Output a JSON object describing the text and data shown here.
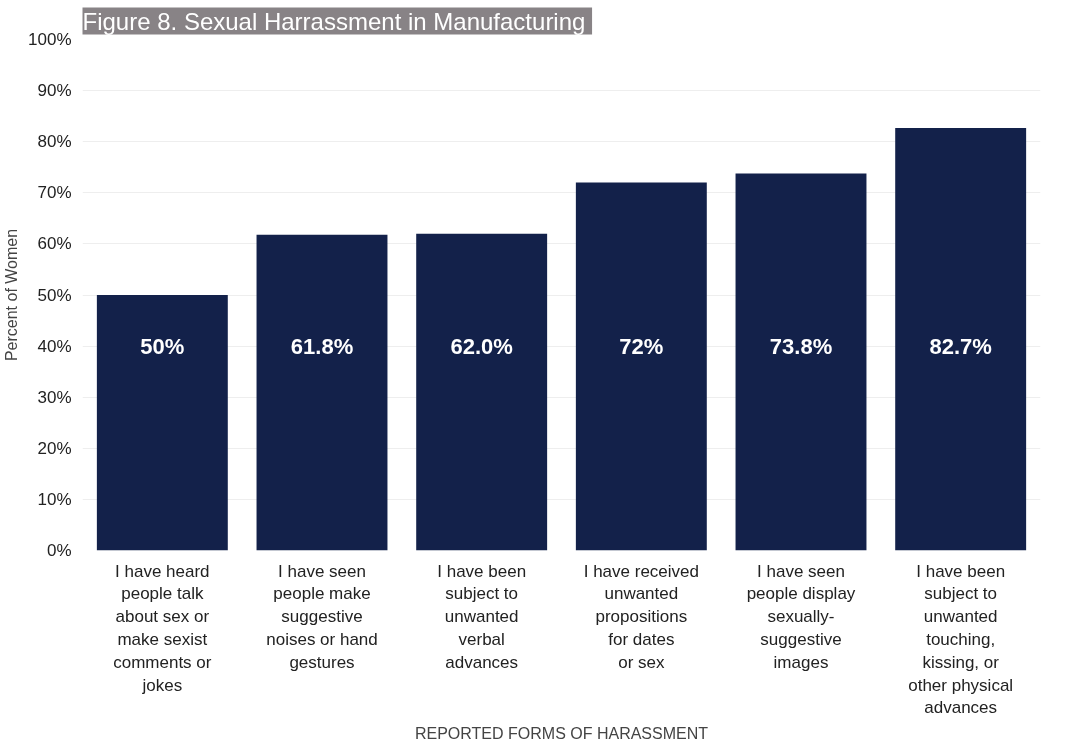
{
  "chart_data": {
    "type": "bar",
    "title": "Figure 8.  Sexual Harrassment in Manufacturing",
    "categories": [
      "I have heard\npeople talk\nabout sex or\nmake sexist\ncomments or\njokes",
      "I have seen\npeople make\nsuggestive\nnoises or hand\ngestures",
      "I have been\nsubject to\nunwanted\nverbal\nadvances",
      "I have received\nunwanted\npropositions\nfor dates\nor sex",
      "I have seen\npeople display\nsexually-\nsuggestive\nimages",
      "I have been\nsubject to\nunwanted\ntouching,\nkissing, or\nother physical\nadvances"
    ],
    "values": [
      50,
      61.8,
      62.0,
      72,
      73.8,
      82.7
    ],
    "value_labels": [
      "50%",
      "61.8%",
      "62.0%",
      "72%",
      "73.8%",
      "82.7%"
    ],
    "color": "#13214a",
    "ylabel": "Percent of Women",
    "xlabel": "REPORTED FORMS OF HARASSMENT",
    "ylim": [
      0,
      100
    ],
    "yticks": [
      {
        "value": 0,
        "label": "0%"
      },
      {
        "value": 10,
        "label": "10%"
      },
      {
        "value": 20,
        "label": "20%"
      },
      {
        "value": 30,
        "label": "30%"
      },
      {
        "value": 40,
        "label": "40%"
      },
      {
        "value": 50,
        "label": "50%"
      },
      {
        "value": 60,
        "label": "60%"
      },
      {
        "value": 70,
        "label": "70%"
      },
      {
        "value": 80,
        "label": "80%"
      },
      {
        "value": 90,
        "label": "90%"
      },
      {
        "value": 100,
        "label": "100%"
      }
    ],
    "grid": "y"
  }
}
